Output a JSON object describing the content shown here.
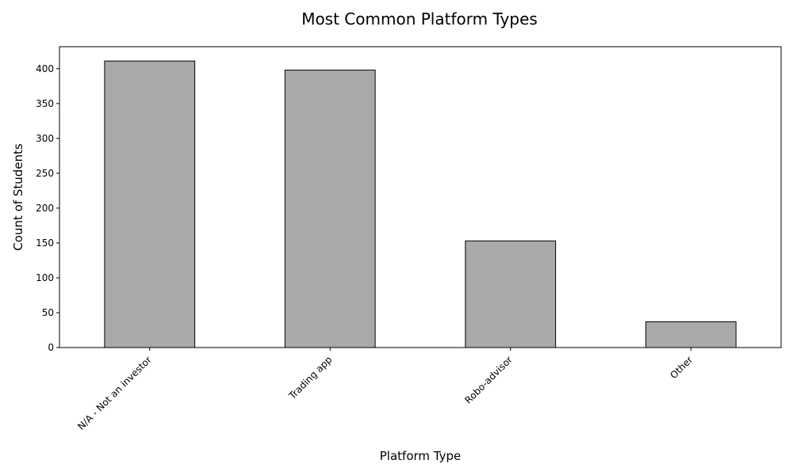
{
  "chart_data": {
    "type": "bar",
    "title": "Most Common Platform Types",
    "xlabel": "Platform Type",
    "ylabel": "Count of Students",
    "categories": [
      "N/A - Not an investor",
      "Trading app",
      "Robo-advisor",
      "Other"
    ],
    "values": [
      411,
      398,
      153,
      37
    ],
    "ylim": [
      0,
      431.55
    ],
    "yticks": [
      0,
      50,
      100,
      150,
      200,
      250,
      300,
      350,
      400
    ],
    "bar_color": "#a9a9a9",
    "edge_color": "#000000",
    "grid": false,
    "legend": "none"
  }
}
